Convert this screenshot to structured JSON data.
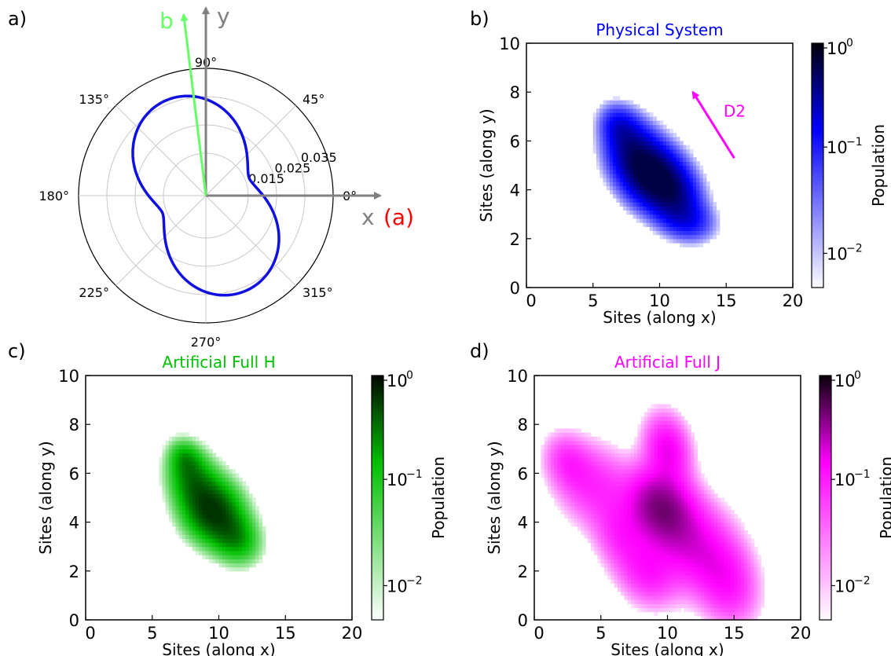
{
  "colors": {
    "physical": "#0000ff",
    "full_h": "#00c000",
    "full_j": "#ff00ff",
    "axis_gray": "#808080",
    "b_vector": "#66ff66",
    "x_label_red": "#ff0000",
    "pattern_line": "#1010e0"
  },
  "chart_data": [
    {
      "panel": "a)",
      "type": "polar-line",
      "theta_ticks": [
        "0°",
        "45°",
        "90°",
        "135°",
        "180°",
        "225°",
        "270°",
        "315°"
      ],
      "r_ticks": [
        "0.015",
        "0.025",
        "0.035"
      ],
      "r_tick_values": [
        0.015,
        0.025,
        0.035
      ],
      "r_max": 0.045,
      "grid": true,
      "pattern_rotation_deg": 112,
      "pattern_max": 0.0365,
      "pattern_min": 0.0165,
      "axes_labels": {
        "x": "x",
        "x_suffix": "(a)",
        "y": "y",
        "b": "b"
      },
      "b_vector_angle_deg": 97
    },
    {
      "panel": "b)",
      "type": "heatmap",
      "title": "Physical System",
      "xlabel": "Sites (along x)",
      "ylabel": "Sites (along y)",
      "xlim": [
        0,
        20
      ],
      "ylim": [
        0,
        10
      ],
      "xticks": [
        "0",
        "5",
        "10",
        "15",
        "20"
      ],
      "yticks": [
        "0",
        "2",
        "4",
        "6",
        "8",
        "10"
      ],
      "colorbar_label": "Population",
      "colorbar_ticks": [
        "10",
        "10",
        "10"
      ],
      "colorbar_exponents": [
        "0",
        "−1",
        "−2"
      ],
      "colormap": "white-to-blue-to-black",
      "blobs": [
        {
          "x": 9.5,
          "y": 4.6,
          "sx": 1.6,
          "sy": 0.9,
          "a": 1.0
        },
        {
          "x": 8.0,
          "y": 5.6,
          "sx": 1.4,
          "sy": 0.9,
          "a": 0.55
        },
        {
          "x": 11.0,
          "y": 3.8,
          "sx": 1.4,
          "sy": 0.8,
          "a": 0.5
        },
        {
          "x": 12.0,
          "y": 2.8,
          "sx": 1.4,
          "sy": 0.6,
          "a": 0.3
        },
        {
          "x": 7.0,
          "y": 6.6,
          "sx": 1.0,
          "sy": 0.6,
          "a": 0.3
        }
      ],
      "annotation": {
        "text": "D2",
        "arrow_from": [
          15.6,
          5.3
        ],
        "arrow_to": [
          12.5,
          8.0
        ]
      }
    },
    {
      "panel": "c)",
      "type": "heatmap",
      "title": "Artificial Full H",
      "xlabel": "Sites (along x)",
      "ylabel": "Sites (along y)",
      "xlim": [
        0,
        20
      ],
      "ylim": [
        0,
        10
      ],
      "xticks": [
        "0",
        "5",
        "10",
        "15",
        "20"
      ],
      "yticks": [
        "0",
        "2",
        "4",
        "6",
        "8",
        "10"
      ],
      "colorbar_label": "Population",
      "colorbar_ticks": [
        "10",
        "10",
        "10"
      ],
      "colorbar_exponents": [
        "0",
        "−1",
        "−2"
      ],
      "colormap": "white-to-green-to-black",
      "blobs": [
        {
          "x": 9.5,
          "y": 4.5,
          "sx": 1.5,
          "sy": 0.9,
          "a": 1.0
        },
        {
          "x": 8.0,
          "y": 5.8,
          "sx": 1.2,
          "sy": 0.8,
          "a": 0.5
        },
        {
          "x": 11.2,
          "y": 3.4,
          "sx": 1.2,
          "sy": 0.7,
          "a": 0.45
        },
        {
          "x": 7.5,
          "y": 6.6,
          "sx": 0.8,
          "sy": 0.5,
          "a": 0.3
        }
      ]
    },
    {
      "panel": "d)",
      "type": "heatmap",
      "title": "Artificial Full J",
      "xlabel": "Sites (along x)",
      "ylabel": "Sites (along y)",
      "xlim": [
        0,
        20
      ],
      "ylim": [
        0,
        10
      ],
      "xticks": [
        "0",
        "5",
        "10",
        "15",
        "20"
      ],
      "yticks": [
        "0",
        "2",
        "4",
        "6",
        "8",
        "10"
      ],
      "colorbar_label": "Population",
      "colorbar_ticks": [
        "10",
        "10",
        "10"
      ],
      "colorbar_exponents": [
        "0",
        "−1",
        "−2"
      ],
      "colormap": "white-to-magenta-to-black",
      "blobs": [
        {
          "x": 9.5,
          "y": 4.6,
          "sx": 1.8,
          "sy": 1.1,
          "a": 0.7
        },
        {
          "x": 10.0,
          "y": 7.0,
          "sx": 1.2,
          "sy": 1.0,
          "a": 0.35
        },
        {
          "x": 12.0,
          "y": 3.0,
          "sx": 2.2,
          "sy": 1.3,
          "a": 0.35
        },
        {
          "x": 14.5,
          "y": 1.5,
          "sx": 1.6,
          "sy": 1.2,
          "a": 0.25
        },
        {
          "x": 4.5,
          "y": 5.5,
          "sx": 2.0,
          "sy": 1.2,
          "a": 0.22
        },
        {
          "x": 2.5,
          "y": 6.5,
          "sx": 1.2,
          "sy": 0.8,
          "a": 0.18
        },
        {
          "x": 8.5,
          "y": 2.0,
          "sx": 1.6,
          "sy": 1.0,
          "a": 0.25
        },
        {
          "x": 6.5,
          "y": 3.5,
          "sx": 1.4,
          "sy": 1.0,
          "a": 0.2
        }
      ]
    }
  ]
}
